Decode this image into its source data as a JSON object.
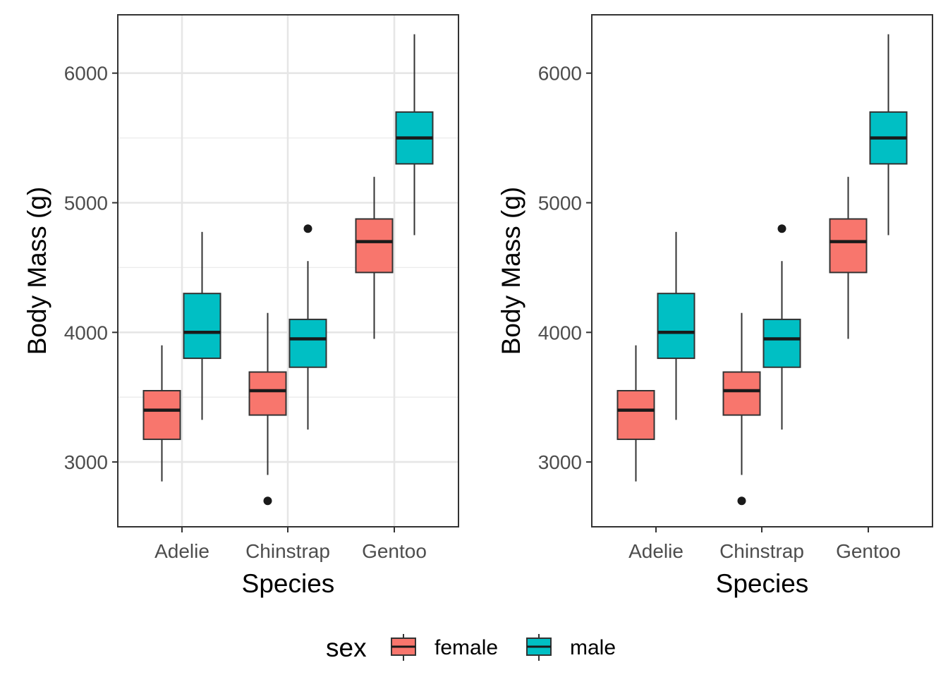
{
  "chart_data": [
    {
      "type": "box",
      "panel": "left",
      "xlabel": "Species",
      "ylabel": "Body Mass (g)",
      "ylim": [
        2500,
        6450
      ],
      "y_ticks": [
        3000,
        4000,
        5000,
        6000
      ],
      "y_tick_labels": [
        "3000",
        "4000",
        "5000",
        "6000"
      ],
      "grid": true,
      "categories": [
        "Adelie",
        "Chinstrap",
        "Gentoo"
      ],
      "series": [
        {
          "name": "female",
          "color": "#F8766D",
          "boxes": [
            {
              "category": "Adelie",
              "whisker_low": 2850,
              "q1": 3175,
              "median": 3400,
              "q3": 3550,
              "whisker_high": 3900,
              "outliers": []
            },
            {
              "category": "Chinstrap",
              "whisker_low": 2900,
              "q1": 3362,
              "median": 3550,
              "q3": 3694,
              "whisker_high": 4150,
              "outliers": [
                2700
              ]
            },
            {
              "category": "Gentoo",
              "whisker_low": 3950,
              "q1": 4462,
              "median": 4700,
              "q3": 4875,
              "whisker_high": 5200,
              "outliers": []
            }
          ]
        },
        {
          "name": "male",
          "color": "#00BFC4",
          "boxes": [
            {
              "category": "Adelie",
              "whisker_low": 3325,
              "q1": 3800,
              "median": 4000,
              "q3": 4300,
              "whisker_high": 4775,
              "outliers": []
            },
            {
              "category": "Chinstrap",
              "whisker_low": 3250,
              "q1": 3731,
              "median": 3950,
              "q3": 4100,
              "whisker_high": 4550,
              "outliers": [
                4800
              ]
            },
            {
              "category": "Gentoo",
              "whisker_low": 4750,
              "q1": 5300,
              "median": 5500,
              "q3": 5700,
              "whisker_high": 6300,
              "outliers": []
            }
          ]
        }
      ]
    },
    {
      "type": "box",
      "panel": "right",
      "xlabel": "Species",
      "ylabel": "Body Mass (g)",
      "ylim": [
        2500,
        6450
      ],
      "y_ticks": [
        3000,
        4000,
        5000,
        6000
      ],
      "y_tick_labels": [
        "3000",
        "4000",
        "5000",
        "6000"
      ],
      "grid": false,
      "categories": [
        "Adelie",
        "Chinstrap",
        "Gentoo"
      ],
      "series": [
        {
          "name": "female",
          "color": "#F8766D",
          "boxes": [
            {
              "category": "Adelie",
              "whisker_low": 2850,
              "q1": 3175,
              "median": 3400,
              "q3": 3550,
              "whisker_high": 3900,
              "outliers": []
            },
            {
              "category": "Chinstrap",
              "whisker_low": 2900,
              "q1": 3362,
              "median": 3550,
              "q3": 3694,
              "whisker_high": 4150,
              "outliers": [
                2700
              ]
            },
            {
              "category": "Gentoo",
              "whisker_low": 3950,
              "q1": 4462,
              "median": 4700,
              "q3": 4875,
              "whisker_high": 5200,
              "outliers": []
            }
          ]
        },
        {
          "name": "male",
          "color": "#00BFC4",
          "boxes": [
            {
              "category": "Adelie",
              "whisker_low": 3325,
              "q1": 3800,
              "median": 4000,
              "q3": 4300,
              "whisker_high": 4775,
              "outliers": []
            },
            {
              "category": "Chinstrap",
              "whisker_low": 3250,
              "q1": 3731,
              "median": 3950,
              "q3": 4100,
              "whisker_high": 4550,
              "outliers": [
                4800
              ]
            },
            {
              "category": "Gentoo",
              "whisker_low": 4750,
              "q1": 5300,
              "median": 5500,
              "q3": 5700,
              "whisker_high": 6300,
              "outliers": []
            }
          ]
        }
      ]
    }
  ],
  "legend": {
    "title": "sex",
    "position": "bottom",
    "items": [
      {
        "label": "female",
        "color": "#F8766D"
      },
      {
        "label": "male",
        "color": "#00BFC4"
      }
    ]
  }
}
